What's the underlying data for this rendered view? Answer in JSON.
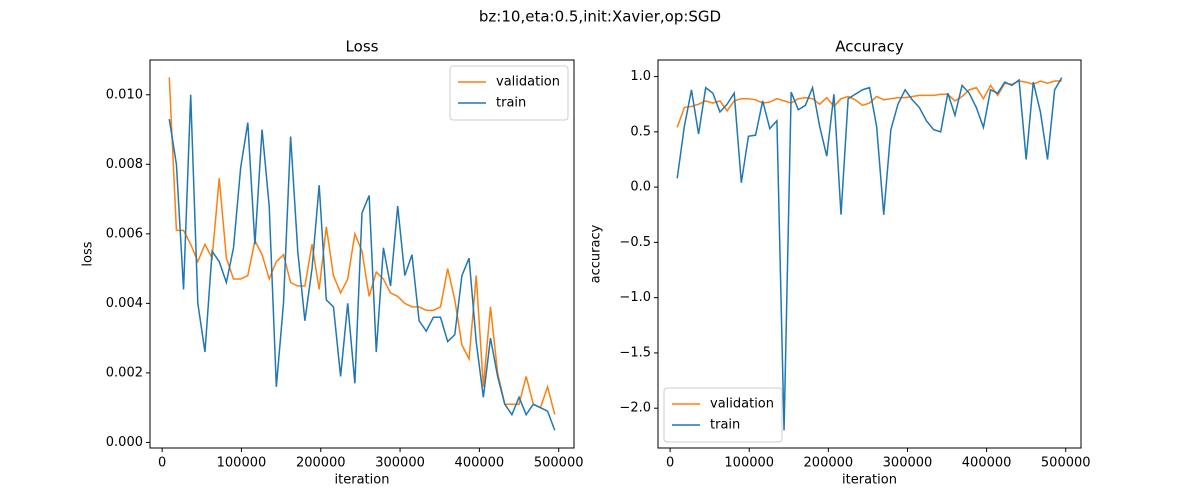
{
  "title": "bz:10,eta:0.5,init:Xavier,op:SGD",
  "chart_data": [
    {
      "type": "line",
      "title": "Loss",
      "xlabel": "iteration",
      "ylabel": "loss",
      "x": [
        9000,
        18000,
        27000,
        36000,
        45000,
        54000,
        63000,
        72000,
        81000,
        90000,
        99000,
        108000,
        117000,
        126000,
        135000,
        144000,
        153000,
        162000,
        171000,
        180000,
        189000,
        198000,
        207000,
        216000,
        225000,
        234000,
        243000,
        252000,
        261000,
        270000,
        279000,
        288000,
        297000,
        306000,
        315000,
        324000,
        333000,
        342000,
        351000,
        360000,
        369000,
        378000,
        387000,
        396000,
        405000,
        414000,
        423000,
        432000,
        441000,
        450000,
        459000,
        468000,
        477000,
        486000,
        495000
      ],
      "series": [
        {
          "name": "validation",
          "color": "#ff7f0e",
          "values": [
            0.0105,
            0.0061,
            0.0061,
            0.0057,
            0.0052,
            0.0057,
            0.0053,
            0.0076,
            0.0053,
            0.0047,
            0.0047,
            0.0048,
            0.0058,
            0.0054,
            0.0047,
            0.0052,
            0.0054,
            0.0046,
            0.0045,
            0.0045,
            0.0057,
            0.0044,
            0.0062,
            0.0048,
            0.0043,
            0.0047,
            0.006,
            0.0055,
            0.0042,
            0.0049,
            0.0047,
            0.0043,
            0.0042,
            0.004,
            0.0039,
            0.0039,
            0.0038,
            0.0038,
            0.0039,
            0.005,
            0.0041,
            0.0028,
            0.0024,
            0.0048,
            0.0016,
            0.0039,
            0.002,
            0.0011,
            0.0011,
            0.0011,
            0.0019,
            0.0011,
            0.001,
            0.0016,
            0.0008
          ]
        },
        {
          "name": "train",
          "color": "#1f77b4",
          "values": [
            0.0093,
            0.008,
            0.0044,
            0.01,
            0.004,
            0.0026,
            0.0055,
            0.0052,
            0.0046,
            0.0056,
            0.0079,
            0.0092,
            0.0057,
            0.009,
            0.0068,
            0.0016,
            0.004,
            0.0088,
            0.0055,
            0.0035,
            0.005,
            0.0074,
            0.0041,
            0.0039,
            0.0019,
            0.004,
            0.0017,
            0.0066,
            0.0071,
            0.0026,
            0.0056,
            0.0045,
            0.0068,
            0.0048,
            0.0054,
            0.0035,
            0.0032,
            0.0036,
            0.0036,
            0.0029,
            0.0031,
            0.0048,
            0.0053,
            0.0029,
            0.0013,
            0.003,
            0.0019,
            0.0011,
            0.0008,
            0.0013,
            0.0008,
            0.0011,
            0.001,
            0.0009,
            0.00035
          ]
        }
      ],
      "xlim": [
        -15300,
        519300
      ],
      "xticks": [
        0,
        100000,
        200000,
        300000,
        400000,
        500000
      ],
      "ylim": [
        -0.00016,
        0.011
      ],
      "yticks": [
        {
          "value": 0,
          "label": "0.000"
        },
        {
          "value": 0.002,
          "label": "0.002"
        },
        {
          "value": 0.004,
          "label": "0.004"
        },
        {
          "value": 0.006,
          "label": "0.006"
        },
        {
          "value": 0.008,
          "label": "0.008"
        },
        {
          "value": 0.01,
          "label": "0.010"
        }
      ],
      "legend": "upper right"
    },
    {
      "type": "line",
      "title": "Accuracy",
      "xlabel": "iteration",
      "ylabel": "accuracy",
      "x": [
        9000,
        18000,
        27000,
        36000,
        45000,
        54000,
        63000,
        72000,
        81000,
        90000,
        99000,
        108000,
        117000,
        126000,
        135000,
        144000,
        153000,
        162000,
        171000,
        180000,
        189000,
        198000,
        207000,
        216000,
        225000,
        234000,
        243000,
        252000,
        261000,
        270000,
        279000,
        288000,
        297000,
        306000,
        315000,
        324000,
        333000,
        342000,
        351000,
        360000,
        369000,
        378000,
        387000,
        396000,
        405000,
        414000,
        423000,
        432000,
        441000,
        450000,
        459000,
        468000,
        477000,
        486000,
        495000
      ],
      "series": [
        {
          "name": "validation",
          "color": "#ff7f0e",
          "values": [
            0.54,
            0.72,
            0.73,
            0.75,
            0.78,
            0.76,
            0.78,
            0.69,
            0.78,
            0.8,
            0.8,
            0.79,
            0.76,
            0.77,
            0.8,
            0.78,
            0.76,
            0.8,
            0.81,
            0.8,
            0.75,
            0.81,
            0.73,
            0.8,
            0.82,
            0.79,
            0.74,
            0.76,
            0.82,
            0.79,
            0.8,
            0.81,
            0.81,
            0.82,
            0.83,
            0.83,
            0.83,
            0.84,
            0.84,
            0.78,
            0.82,
            0.88,
            0.9,
            0.8,
            0.92,
            0.83,
            0.94,
            0.93,
            0.96,
            0.95,
            0.93,
            0.96,
            0.94,
            0.96,
            0.96
          ]
        },
        {
          "name": "train",
          "color": "#1f77b4",
          "values": [
            0.08,
            0.55,
            0.88,
            0.48,
            0.9,
            0.85,
            0.68,
            0.75,
            0.85,
            0.04,
            0.46,
            0.47,
            0.78,
            0.53,
            0.6,
            -2.2,
            0.86,
            0.7,
            0.74,
            0.9,
            0.55,
            0.28,
            0.84,
            -0.25,
            0.8,
            0.84,
            0.88,
            0.9,
            0.55,
            -0.25,
            0.52,
            0.75,
            0.88,
            0.79,
            0.72,
            0.6,
            0.52,
            0.5,
            0.85,
            0.65,
            0.92,
            0.85,
            0.72,
            0.54,
            0.88,
            0.85,
            0.95,
            0.92,
            0.97,
            0.25,
            0.95,
            0.68,
            0.25,
            0.88,
            0.99
          ]
        }
      ],
      "xlim": [
        -15300,
        519300
      ],
      "xticks": [
        0,
        100000,
        200000,
        300000,
        400000,
        500000
      ],
      "ylim": [
        -2.36,
        1.15
      ],
      "yticks": [
        {
          "value": -2,
          "label": "−2.0"
        },
        {
          "value": -1.5,
          "label": "−1.5"
        },
        {
          "value": -1,
          "label": "−1.0"
        },
        {
          "value": -0.5,
          "label": "−0.5"
        },
        {
          "value": 0,
          "label": "0.0"
        },
        {
          "value": 0.5,
          "label": "0.5"
        },
        {
          "value": 1,
          "label": "1.0"
        }
      ],
      "legend": "lower left"
    }
  ]
}
